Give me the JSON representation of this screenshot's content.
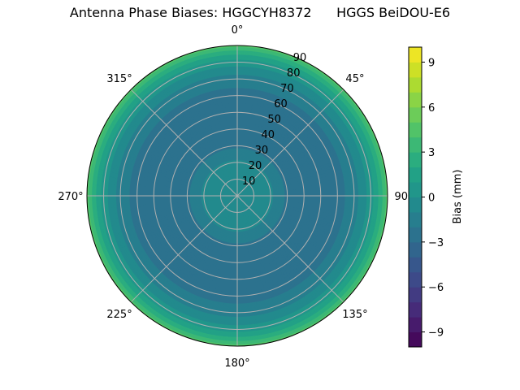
{
  "chart_data": {
    "type": "polar-contour",
    "title": "Antenna Phase Biases: HGGCYH8372      HGGS BeiDOU-E6",
    "angular_ticks": [
      "0°",
      "45°",
      "90°",
      "135°",
      "180°",
      "225°",
      "270°",
      "315°"
    ],
    "radial_ticks": [
      "10",
      "20",
      "30",
      "40",
      "50",
      "60",
      "70",
      "80",
      "90"
    ],
    "radial_range": [
      0,
      90
    ],
    "grid": true,
    "colorbar": {
      "label": "Bias (mm)",
      "range": [
        -10,
        10
      ],
      "levels": 20,
      "ticks": [
        "9",
        "6",
        "3",
        "0",
        "−3",
        "−6",
        "−9"
      ],
      "tick_values": [
        9,
        6,
        3,
        0,
        -3,
        -6,
        -9
      ],
      "colormap": "viridis"
    },
    "radial_profile": {
      "description": "Approximately azimuthally symmetric bias vs zenith angle",
      "zenith_deg": [
        0,
        10,
        20,
        25,
        30,
        40,
        50,
        60,
        70,
        75,
        80,
        83,
        86,
        88,
        90
      ],
      "bias_mm": [
        -0.5,
        -0.5,
        -0.8,
        -1.5,
        -2.2,
        -2.6,
        -2.7,
        -2.4,
        -1.5,
        -0.5,
        0.5,
        1.5,
        2.5,
        3.5,
        4.5
      ]
    }
  }
}
